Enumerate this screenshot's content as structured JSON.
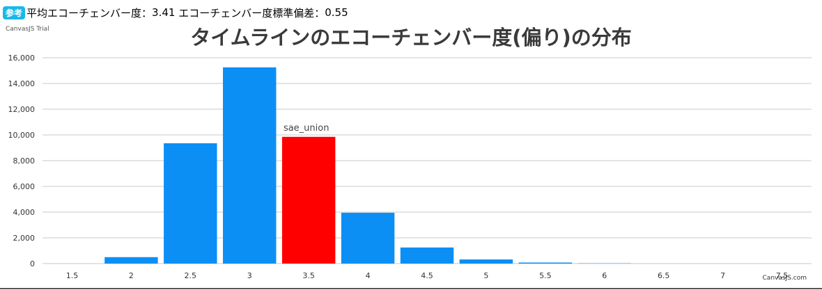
{
  "badge": "参考",
  "summary": {
    "mean_label": "平均エコーチェンバー度：",
    "mean_value": "3.41",
    "sd_label": "エコーチェンバー度標準偏差：",
    "sd_value": "0.55"
  },
  "watermark": "CanvasJS Trial",
  "credit": "CanvasJS.com",
  "colors": {
    "bar": "#0b8ff5",
    "highlight": "#ff0000",
    "grid": "#c8c8c8",
    "badge": "#1ab8e8"
  },
  "chart_data": {
    "type": "bar",
    "title": "タイムラインのエコーチェンバー度(偏り)の分布",
    "xlabel": "",
    "ylabel": "",
    "categories": [
      "1.5",
      "2",
      "2.5",
      "3",
      "3.5",
      "4",
      "4.5",
      "5",
      "5.5",
      "6",
      "6.5",
      "7",
      "7.5"
    ],
    "x": [
      1.5,
      2,
      2.5,
      3,
      3.5,
      4,
      4.5,
      5,
      5.5,
      6,
      6.5,
      7,
      7.5
    ],
    "values": [
      0,
      500,
      9350,
      15250,
      9850,
      3950,
      1250,
      320,
      80,
      20,
      0,
      0,
      0
    ],
    "highlight": {
      "x": 3.5,
      "label": "sae_union"
    },
    "ylim": [
      0,
      16000
    ],
    "yticks": [
      0,
      2000,
      4000,
      6000,
      8000,
      10000,
      12000,
      14000,
      16000
    ],
    "ytick_labels": [
      "0",
      "2,000",
      "4,000",
      "6,000",
      "8,000",
      "10,000",
      "12,000",
      "14,000",
      "16,000"
    ],
    "grid": true,
    "legend": "none"
  }
}
